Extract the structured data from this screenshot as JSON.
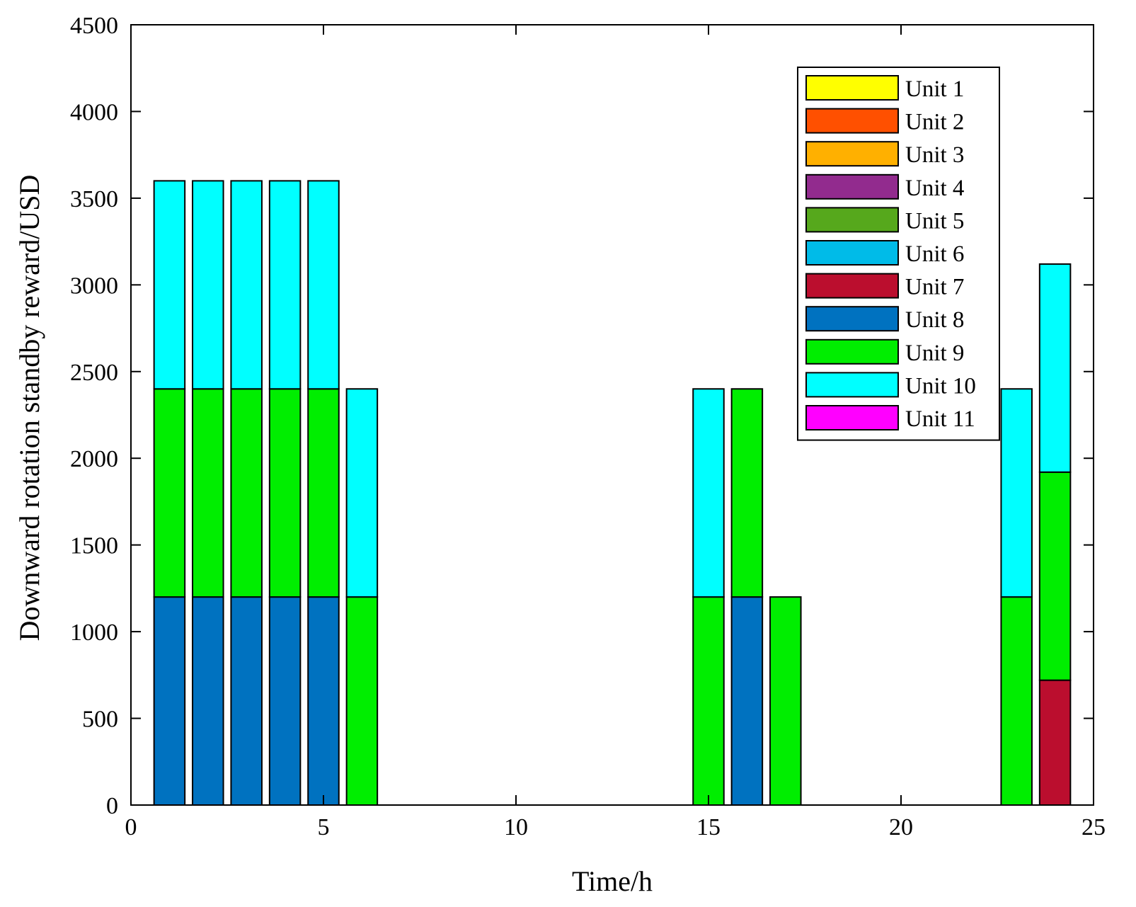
{
  "chart_data": {
    "type": "bar",
    "stacked": true,
    "title": "",
    "xlabel": "Time/h",
    "ylabel": "Downward rotation standby reward/USD",
    "xlim": [
      0,
      25
    ],
    "ylim": [
      0,
      4500
    ],
    "xticks": [
      0,
      5,
      10,
      15,
      20,
      25
    ],
    "yticks": [
      0,
      500,
      1000,
      1500,
      2000,
      2500,
      3000,
      3500,
      4000,
      4500
    ],
    "grid": false,
    "legend_position": "top-right",
    "x": [
      1,
      2,
      3,
      4,
      5,
      6,
      7,
      8,
      9,
      10,
      11,
      12,
      13,
      14,
      15,
      16,
      17,
      18,
      19,
      20,
      21,
      22,
      23,
      24
    ],
    "series": [
      {
        "name": "Unit 1",
        "color": "#ffff00",
        "values": [
          0,
          0,
          0,
          0,
          0,
          0,
          0,
          0,
          0,
          0,
          0,
          0,
          0,
          0,
          0,
          0,
          0,
          0,
          0,
          0,
          0,
          0,
          0,
          0
        ]
      },
      {
        "name": "Unit 2",
        "color": "#ff5000",
        "values": [
          0,
          0,
          0,
          0,
          0,
          0,
          0,
          0,
          0,
          0,
          0,
          0,
          0,
          0,
          0,
          0,
          0,
          0,
          0,
          0,
          0,
          0,
          0,
          0
        ]
      },
      {
        "name": "Unit 3",
        "color": "#ffb000",
        "values": [
          0,
          0,
          0,
          0,
          0,
          0,
          0,
          0,
          0,
          0,
          0,
          0,
          0,
          0,
          0,
          0,
          0,
          0,
          0,
          0,
          0,
          0,
          0,
          0
        ]
      },
      {
        "name": "Unit 4",
        "color": "#922b8e",
        "values": [
          0,
          0,
          0,
          0,
          0,
          0,
          0,
          0,
          0,
          0,
          0,
          0,
          0,
          0,
          0,
          0,
          0,
          0,
          0,
          0,
          0,
          0,
          0,
          0
        ]
      },
      {
        "name": "Unit 5",
        "color": "#56a81c",
        "values": [
          0,
          0,
          0,
          0,
          0,
          0,
          0,
          0,
          0,
          0,
          0,
          0,
          0,
          0,
          0,
          0,
          0,
          0,
          0,
          0,
          0,
          0,
          0,
          0
        ]
      },
      {
        "name": "Unit 6",
        "color": "#00bbe8",
        "values": [
          0,
          0,
          0,
          0,
          0,
          0,
          0,
          0,
          0,
          0,
          0,
          0,
          0,
          0,
          0,
          0,
          0,
          0,
          0,
          0,
          0,
          0,
          0,
          0
        ]
      },
      {
        "name": "Unit 7",
        "color": "#bb0e2e",
        "values": [
          0,
          0,
          0,
          0,
          0,
          0,
          0,
          0,
          0,
          0,
          0,
          0,
          0,
          0,
          0,
          0,
          0,
          0,
          0,
          0,
          0,
          0,
          0,
          720
        ]
      },
      {
        "name": "Unit 8",
        "color": "#0072c0",
        "values": [
          1200,
          1200,
          1200,
          1200,
          1200,
          0,
          0,
          0,
          0,
          0,
          0,
          0,
          0,
          0,
          0,
          1200,
          0,
          0,
          0,
          0,
          0,
          0,
          0,
          0
        ]
      },
      {
        "name": "Unit 9",
        "color": "#00ee00",
        "values": [
          1200,
          1200,
          1200,
          1200,
          1200,
          1200,
          0,
          0,
          0,
          0,
          0,
          0,
          0,
          0,
          1200,
          1200,
          1200,
          0,
          0,
          0,
          0,
          0,
          1200,
          1200
        ]
      },
      {
        "name": "Unit 10",
        "color": "#00ffff",
        "values": [
          1200,
          1200,
          1200,
          1200,
          1200,
          1200,
          0,
          0,
          0,
          0,
          0,
          0,
          0,
          0,
          1200,
          0,
          0,
          0,
          0,
          0,
          0,
          0,
          1200,
          1200
        ]
      },
      {
        "name": "Unit 11",
        "color": "#ff00ff",
        "values": [
          0,
          0,
          0,
          0,
          0,
          0,
          0,
          0,
          0,
          0,
          0,
          0,
          0,
          0,
          0,
          0,
          0,
          0,
          0,
          0,
          0,
          0,
          0,
          0
        ]
      }
    ]
  }
}
